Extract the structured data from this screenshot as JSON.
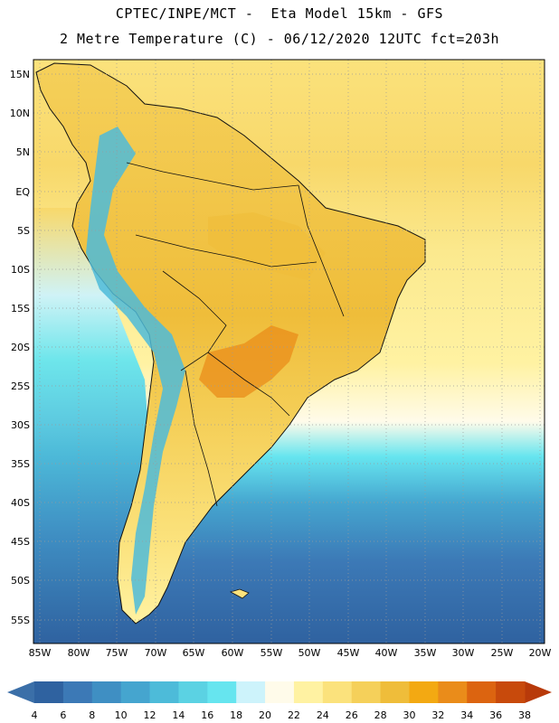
{
  "title": {
    "line1": "CPTEC/INPE/MCT -  Eta Model 15km - GFS",
    "line2": "2 Metre Temperature (C) - 06/12/2020 12UTC fct=203h"
  },
  "map": {
    "region": "South America",
    "lat_labels": [
      "15N",
      "10N",
      "5N",
      "EQ",
      "5S",
      "10S",
      "15S",
      "20S",
      "25S",
      "30S",
      "35S",
      "40S",
      "45S",
      "50S",
      "55S"
    ],
    "lon_labels": [
      "85W",
      "80W",
      "75W",
      "70W",
      "65W",
      "60W",
      "55W",
      "50W",
      "45W",
      "40W",
      "35W",
      "30W",
      "25W",
      "20W"
    ]
  },
  "colorbar": {
    "ticks": [
      "4",
      "6",
      "8",
      "10",
      "12",
      "14",
      "16",
      "18",
      "20",
      "22",
      "24",
      "26",
      "28",
      "30",
      "32",
      "34",
      "36",
      "38"
    ],
    "low_color": "#3b6fa8",
    "high_color": "#b83a0a",
    "colors": [
      "#2f62a0",
      "#3c79b6",
      "#3f8fc3",
      "#45a5cf",
      "#4dbbd9",
      "#5bd2e3",
      "#66e5ef",
      "#cdf3fb",
      "#fffbea",
      "#fff2a2",
      "#fbe27c",
      "#f5d05a",
      "#efbd3a",
      "#f3a912",
      "#ea8c1a",
      "#dc6410",
      "#c84a0c"
    ]
  }
}
